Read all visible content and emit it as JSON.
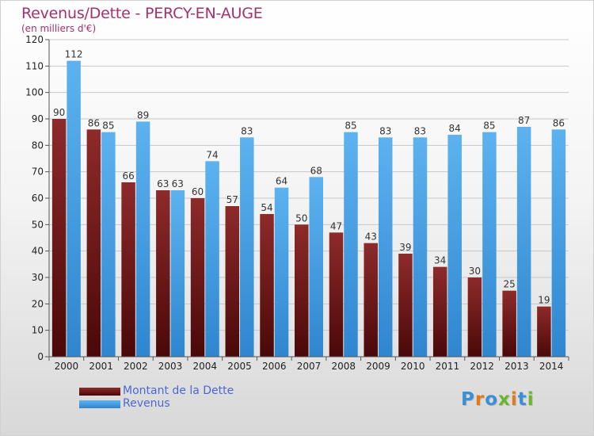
{
  "page": {
    "title": "Revenus/Dette - PERCY-EN-AUGE",
    "subtitle": "(en milliers d'€)"
  },
  "chart_data": {
    "type": "bar",
    "title": "Revenus/Dette - PERCY-EN-AUGE",
    "subtitle": "(en milliers d'€)",
    "xlabel": "",
    "ylabel": "",
    "ylim": [
      0,
      120
    ],
    "yticks": [
      0,
      10,
      20,
      30,
      40,
      50,
      60,
      70,
      80,
      90,
      100,
      110,
      120
    ],
    "grid": true,
    "legend_position": "bottom-left",
    "categories": [
      "2000",
      "2001",
      "2002",
      "2003",
      "2004",
      "2005",
      "2006",
      "2007",
      "2008",
      "2009",
      "2010",
      "2011",
      "2012",
      "2013",
      "2014"
    ],
    "series": [
      {
        "name": "Montant de la Dette",
        "color": "#7a1a1a",
        "values": [
          90,
          86,
          66,
          63,
          60,
          57,
          54,
          50,
          47,
          43,
          39,
          34,
          30,
          25,
          19
        ]
      },
      {
        "name": "Revenus",
        "color": "#4aa3e6",
        "values": [
          112,
          85,
          89,
          63,
          74,
          83,
          64,
          68,
          85,
          83,
          83,
          84,
          85,
          87,
          86
        ]
      }
    ]
  },
  "logo": {
    "letters": [
      "P",
      "r",
      "o",
      "x",
      "i",
      "t",
      "i"
    ],
    "colors": [
      "#3b8fd6",
      "#e07b1a",
      "#3b8fd6",
      "#6bb52c",
      "#e07b1a",
      "#3b8fd6",
      "#6bb52c"
    ]
  }
}
